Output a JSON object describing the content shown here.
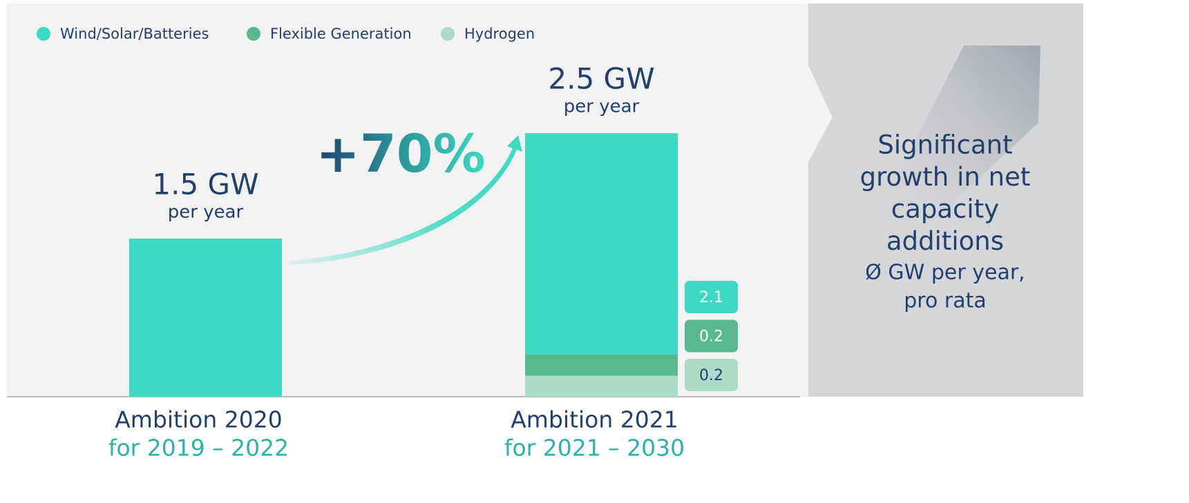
{
  "chart_data": {
    "type": "stacked_bar",
    "categories": [
      "Ambition 2020",
      "Ambition 2021"
    ],
    "category_sublabels": [
      "for 2019 – 2022",
      "for 2021 – 2030"
    ],
    "series": [
      {
        "name": "Wind/Solar/Batteries",
        "color": "#3dd9c3",
        "values": [
          1.5,
          2.1
        ]
      },
      {
        "name": "Flexible Generation",
        "color": "#5ab88f",
        "values": [
          0,
          0.2
        ]
      },
      {
        "name": "Hydrogen",
        "color": "#acdcc7",
        "values": [
          0,
          0.2
        ]
      }
    ],
    "totals": [
      "1.5 GW",
      "2.5 GW"
    ],
    "total_sublabel": "per year",
    "growth_label": "+70%",
    "ylim": [
      0,
      2.5
    ],
    "side_note": {
      "title_lines": [
        "Significant",
        "growth in net",
        "capacity",
        "additions"
      ],
      "subtitle_lines": [
        "Ø GW per year,",
        "pro rata"
      ]
    }
  }
}
